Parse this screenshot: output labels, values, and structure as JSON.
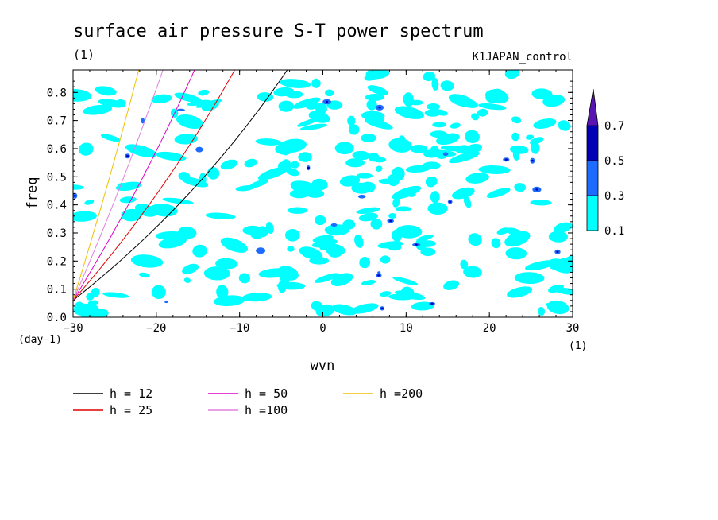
{
  "chart_data": {
    "type": "contour",
    "title": "surface air pressure S-T power spectrum",
    "title_unit": "(1)",
    "run_name": "K1JAPAN_control",
    "xlabel": "wvn",
    "x_unit": "(1)",
    "ylabel": "freq",
    "y_unit": "(day-1)",
    "xlim": [
      -30,
      30
    ],
    "ylim": [
      0,
      0.88
    ],
    "xticks": [
      -30,
      -20,
      -10,
      0,
      10,
      20,
      30
    ],
    "yticks": [
      0.0,
      0.1,
      0.2,
      0.3,
      0.4,
      0.5,
      0.6,
      0.7,
      0.8
    ],
    "ytick_labels": [
      "0.0",
      "0.1",
      "0.2",
      "0.3",
      "0.4",
      "0.5",
      "0.6",
      "0.7",
      "0.8"
    ],
    "colorbar": {
      "levels": [
        0.1,
        0.3,
        0.5,
        0.7
      ],
      "labels": [
        "0.1",
        "0.3",
        "0.5",
        "0.7"
      ],
      "colors": [
        "#00ffff",
        "#1e6cff",
        "#0000b4",
        "#5a14b4"
      ],
      "extend": "max"
    },
    "dispersion_curves": [
      {
        "name": "h = 12",
        "h": 12,
        "color": "#000000"
      },
      {
        "name": "h = 25",
        "h": 25,
        "color": "#e00000"
      },
      {
        "name": "h = 50",
        "h": 50,
        "color": "#e000c8"
      },
      {
        "name": "h =100",
        "h": 100,
        "color": "#e080e0"
      },
      {
        "name": "h =200",
        "h": 200,
        "color": "#f0c000"
      }
    ]
  }
}
